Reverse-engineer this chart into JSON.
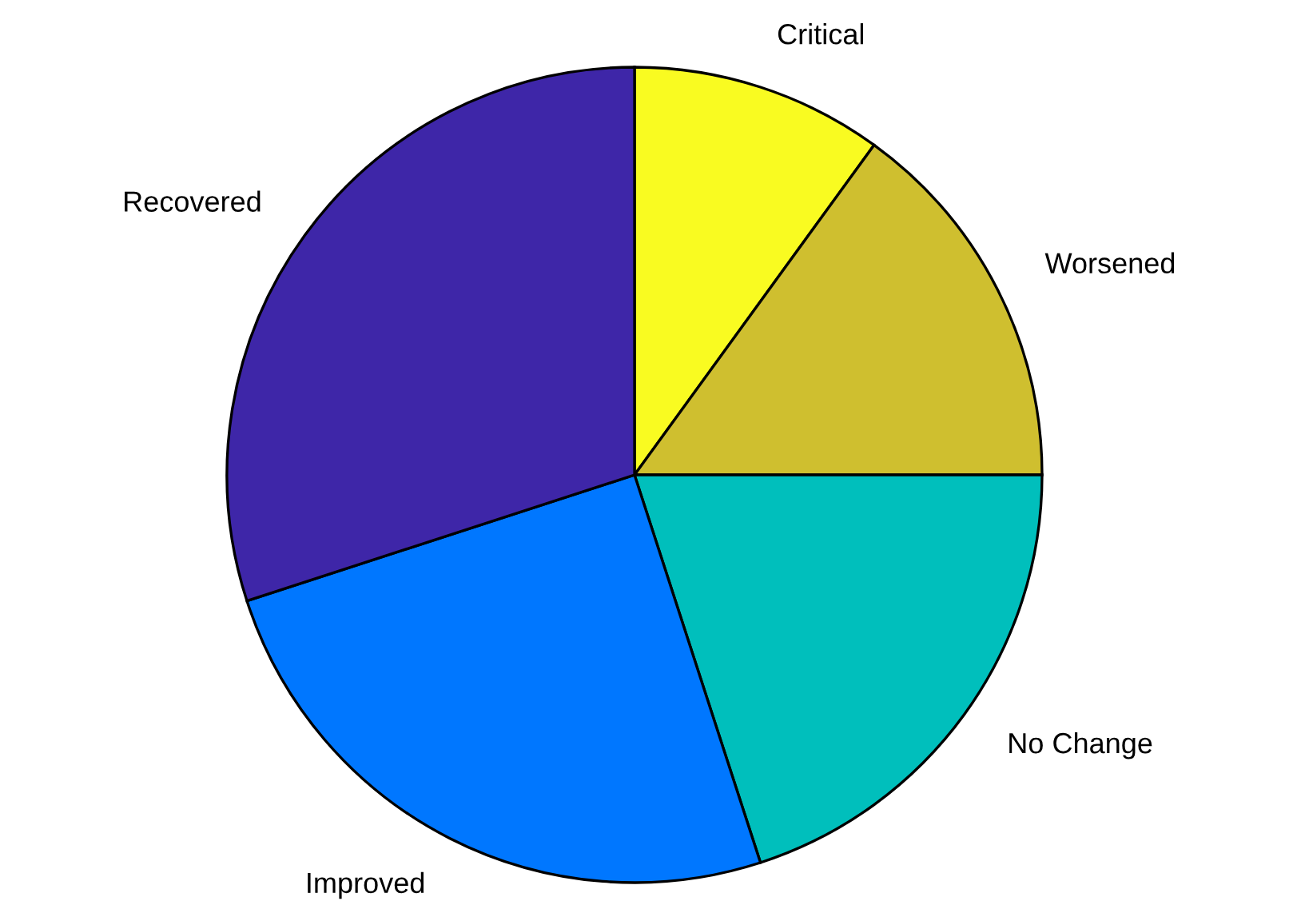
{
  "chart_data": {
    "type": "pie",
    "categories": [
      "Critical",
      "Worsened",
      "No Change",
      "Improved",
      "Recovered"
    ],
    "values": [
      10,
      15,
      20,
      25,
      30
    ],
    "colors": [
      "#f9fb21",
      "#cfbf2f",
      "#00bfbc",
      "#0077ff",
      "#3e26a8"
    ]
  }
}
